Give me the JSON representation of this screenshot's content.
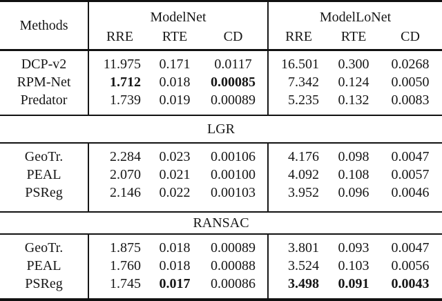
{
  "page": {
    "background": "#ffffff",
    "text_color": "#161616",
    "rule_color": "#111111"
  },
  "table": {
    "header": {
      "methods_label": "Methods",
      "groups": [
        {
          "label": "ModelNet",
          "cols": [
            "RRE",
            "RTE",
            "CD"
          ]
        },
        {
          "label": "ModelLoNet",
          "cols": [
            "RRE",
            "RTE",
            "CD"
          ]
        }
      ]
    },
    "sections": [
      {
        "band": null,
        "rows": [
          {
            "method": "DCP-v2",
            "values": [
              "11.975",
              "0.171",
              "0.0117",
              "16.501",
              "0.300",
              "0.0268"
            ],
            "bold": []
          },
          {
            "method": "RPM-Net",
            "values": [
              "1.712",
              "0.018",
              "0.00085",
              "7.342",
              "0.124",
              "0.0050"
            ],
            "bold": [
              0,
              2
            ]
          },
          {
            "method": "Predator",
            "values": [
              "1.739",
              "0.019",
              "0.00089",
              "5.235",
              "0.132",
              "0.0083"
            ],
            "bold": []
          }
        ]
      },
      {
        "band": "LGR",
        "rows": [
          {
            "method": "GeoTr.",
            "values": [
              "2.284",
              "0.023",
              "0.00106",
              "4.176",
              "0.098",
              "0.0047"
            ],
            "bold": []
          },
          {
            "method": "PEAL",
            "values": [
              "2.070",
              "0.021",
              "0.00100",
              "4.092",
              "0.108",
              "0.0057"
            ],
            "bold": []
          },
          {
            "method": "PSReg",
            "values": [
              "2.146",
              "0.022",
              "0.00103",
              "3.952",
              "0.096",
              "0.0046"
            ],
            "bold": []
          }
        ]
      },
      {
        "band": "RANSAC",
        "rows": [
          {
            "method": "GeoTr.",
            "values": [
              "1.875",
              "0.018",
              "0.00089",
              "3.801",
              "0.093",
              "0.0047"
            ],
            "bold": []
          },
          {
            "method": "PEAL",
            "values": [
              "1.760",
              "0.018",
              "0.00088",
              "3.524",
              "0.103",
              "0.0056"
            ],
            "bold": []
          },
          {
            "method": "PSReg",
            "values": [
              "1.745",
              "0.017",
              "0.00086",
              "3.498",
              "0.091",
              "0.0043"
            ],
            "bold": [
              1,
              3,
              4,
              5
            ]
          }
        ]
      }
    ]
  }
}
